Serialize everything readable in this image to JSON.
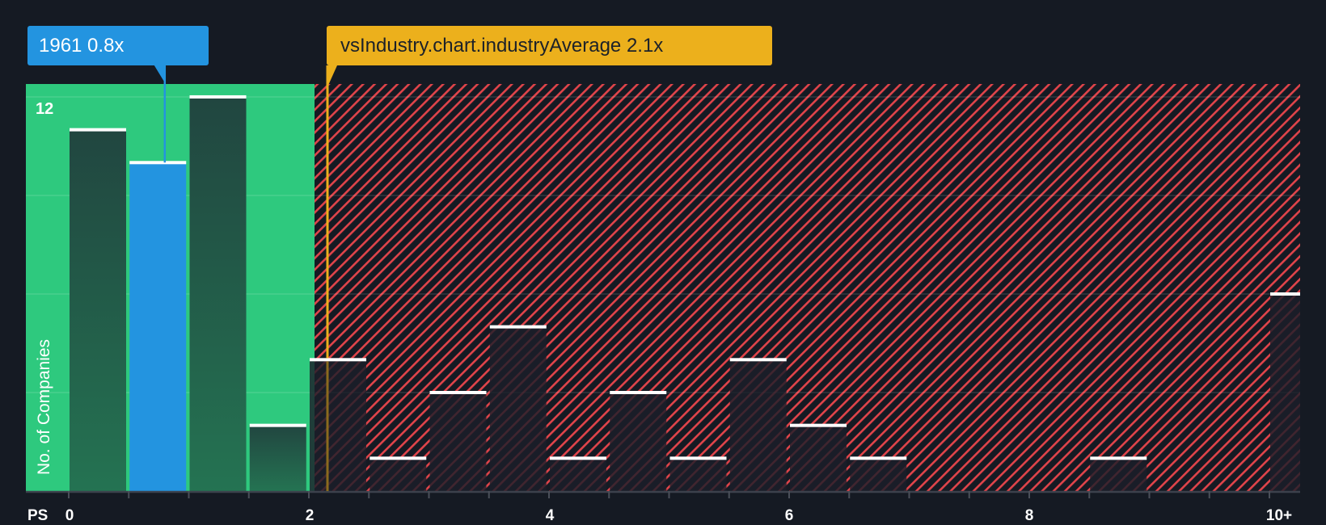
{
  "company_callout": {
    "label": "1961 0.8x",
    "ticker": "1961",
    "value": 0.8
  },
  "industry_callout": {
    "label": "vsIndustry.chart.industryAverage 2.1x",
    "value": 2.1
  },
  "y_axis": {
    "title": "No. of Companies",
    "top_label": "12"
  },
  "x_axis": {
    "unit": "PS",
    "labels": [
      "0",
      "2",
      "4",
      "6",
      "8",
      "10+"
    ]
  },
  "colors": {
    "background": "#151a23",
    "good_zone": "#2ec97e",
    "bar_in_good_zone": "#214640",
    "company_bar": "#2394e0",
    "industry_line": "#ecb01c",
    "hatch_red": "#e0444a",
    "bar_top": "#ffffff"
  },
  "chart_data": {
    "type": "bar",
    "title": "",
    "xlabel": "PS",
    "ylabel": "No. of Companies",
    "ylim": [
      0,
      12.4
    ],
    "xlim": [
      -0.35,
      10.3
    ],
    "grid": true,
    "yticks_shown": [
      12
    ],
    "gridlines_y": [
      3,
      6,
      9,
      12
    ],
    "xticks": [
      0,
      2,
      4,
      6,
      8,
      "10+"
    ],
    "bin_width": 0.5,
    "categories": [
      "0-0.5",
      "0.5-1",
      "1-1.5",
      "1.5-2",
      "2-2.5",
      "2.5-3",
      "3-3.5",
      "3.5-4",
      "4-4.5",
      "4.5-5",
      "5-5.5",
      "5.5-6",
      "6-6.5",
      "6.5-7",
      "7-7.5",
      "7.5-8",
      "8-8.5",
      "8.5-9",
      "9-9.5",
      "9.5-10",
      "10+"
    ],
    "bin_starts": [
      0,
      0.5,
      1,
      1.5,
      2,
      2.5,
      3,
      3.5,
      4,
      4.5,
      5,
      5.5,
      6,
      6.5,
      7,
      7.5,
      8,
      8.5,
      9,
      9.5,
      10
    ],
    "values": [
      11,
      10,
      12,
      2,
      4,
      1,
      3,
      5,
      1,
      3,
      1,
      4,
      2,
      1,
      0,
      0,
      0,
      1,
      0,
      0,
      6
    ],
    "highlight_bin": "0.5-1",
    "annotations": [
      {
        "label": "1961 0.8x",
        "x": 0.8,
        "color": "#2394e0"
      },
      {
        "label": "vsIndustry.chart.industryAverage 2.1x",
        "x": 2.1,
        "color": "#ecb01c"
      }
    ],
    "zones": [
      {
        "name": "below-average",
        "from": -0.35,
        "to": 2.0,
        "color": "#2ec97e"
      },
      {
        "name": "above-average",
        "from": 2.0,
        "to": 10.3,
        "style": "red-hatch"
      }
    ]
  }
}
